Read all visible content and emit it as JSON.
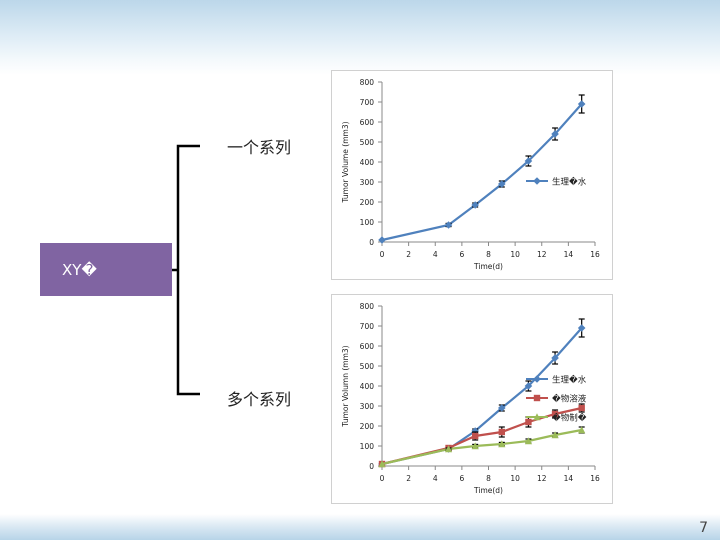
{
  "slide": {
    "page_number": "7"
  },
  "diagram": {
    "root_label": "XY�",
    "branch_single": "一个系列",
    "branch_multi": "多个系列"
  },
  "chart_data": [
    {
      "type": "line",
      "title": "",
      "xlabel": "Time(d)",
      "ylabel": "Tumor Volume (mm3)",
      "xlim": [
        0,
        16
      ],
      "ylim": [
        0,
        800
      ],
      "xticks": [
        "0",
        "2",
        "4",
        "6",
        "8",
        "10",
        "12",
        "14",
        "16"
      ],
      "yticks": [
        "0",
        "100",
        "200",
        "300",
        "400",
        "500",
        "600",
        "700",
        "800"
      ],
      "legend_position": "right",
      "series": [
        {
          "name": "生理�水",
          "color": "#4f81bd",
          "marker": "diamond",
          "x": [
            0,
            5,
            7,
            9,
            11,
            13,
            15
          ],
          "y": [
            10,
            85,
            185,
            290,
            405,
            540,
            690
          ],
          "err": [
            0,
            8,
            10,
            15,
            25,
            30,
            45
          ]
        }
      ]
    },
    {
      "type": "line",
      "title": "",
      "xlabel": "Time(d)",
      "ylabel": "Tumor Volumn (mm3)",
      "xlim": [
        0,
        16
      ],
      "ylim": [
        0,
        800
      ],
      "xticks": [
        "0",
        "2",
        "4",
        "6",
        "8",
        "10",
        "12",
        "14",
        "16"
      ],
      "yticks": [
        "0",
        "100",
        "200",
        "300",
        "400",
        "500",
        "600",
        "700",
        "800"
      ],
      "legend_position": "right",
      "series": [
        {
          "name": "生理�水",
          "color": "#4f81bd",
          "marker": "diamond",
          "x": [
            0,
            5,
            7,
            9,
            11,
            13,
            15
          ],
          "y": [
            10,
            85,
            175,
            290,
            400,
            540,
            690
          ],
          "err": [
            0,
            8,
            10,
            15,
            25,
            30,
            45
          ]
        },
        {
          "name": "�物溶液",
          "color": "#c0504d",
          "marker": "square",
          "x": [
            0,
            5,
            7,
            9,
            11,
            13,
            15
          ],
          "y": [
            10,
            90,
            150,
            170,
            220,
            260,
            290
          ],
          "err": [
            0,
            8,
            20,
            25,
            25,
            20,
            20
          ]
        },
        {
          "name": "�物制�",
          "color": "#9bbb59",
          "marker": "triangle",
          "x": [
            0,
            5,
            7,
            9,
            11,
            13,
            15
          ],
          "y": [
            10,
            85,
            100,
            110,
            125,
            155,
            180
          ],
          "err": [
            0,
            5,
            8,
            8,
            10,
            10,
            15
          ]
        }
      ]
    }
  ]
}
